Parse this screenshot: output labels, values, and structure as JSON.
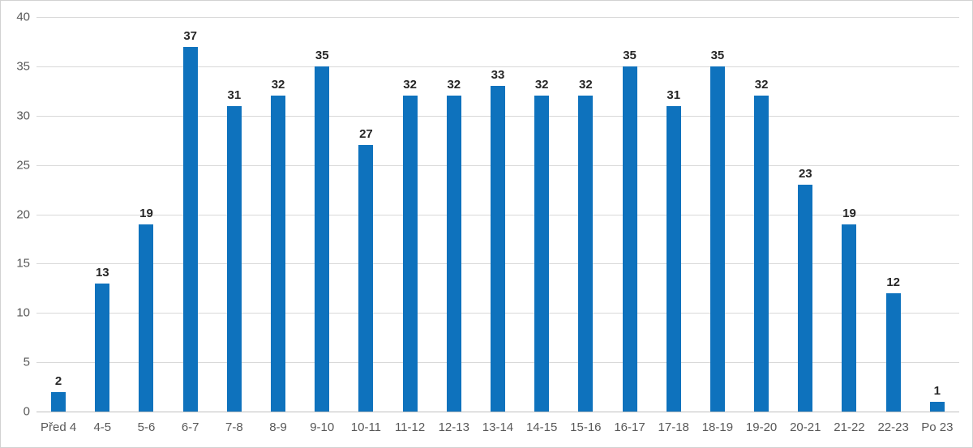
{
  "chart_data": {
    "type": "bar",
    "title": "",
    "xlabel": "",
    "ylabel": "",
    "categories": [
      "Před 4",
      "4-5",
      "5-6",
      "6-7",
      "7-8",
      "8-9",
      "9-10",
      "10-11",
      "11-12",
      "12-13",
      "13-14",
      "14-15",
      "15-16",
      "16-17",
      "17-18",
      "18-19",
      "19-20",
      "20-21",
      "21-22",
      "22-23",
      "Po 23"
    ],
    "values": [
      2,
      13,
      19,
      37,
      31,
      32,
      35,
      27,
      32,
      32,
      33,
      32,
      32,
      35,
      31,
      35,
      32,
      23,
      19,
      12,
      1
    ],
    "ylim": [
      0,
      40
    ],
    "ytick_step": 5,
    "grid": true,
    "legend": false,
    "data_labels": true,
    "bar_color": "#0e72bd",
    "gridline_color": "#d9d9d9",
    "axis_line_color": "#bfbfbf",
    "tick_label_color": "#595959",
    "data_label_color": "#262626",
    "frame_border_color": "#d2d2d2"
  }
}
